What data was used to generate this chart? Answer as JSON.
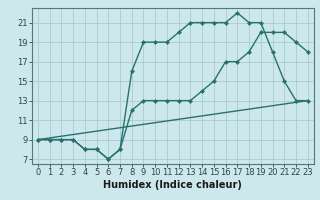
{
  "title": "",
  "xlabel": "Humidex (Indice chaleur)",
  "bg_color": "#cce8ec",
  "grid_color": "#aacccc",
  "line_color": "#2a7070",
  "line1_x": [
    0,
    1,
    2,
    3,
    4,
    5,
    6,
    7,
    8,
    9,
    10,
    11,
    12,
    13,
    14,
    15,
    16,
    17,
    18,
    19,
    20,
    21,
    22,
    23
  ],
  "line1_y": [
    9,
    9,
    9,
    9,
    8,
    8,
    7,
    8,
    16,
    19,
    19,
    19,
    20,
    21,
    21,
    21,
    21,
    22,
    21,
    21,
    18,
    15,
    13,
    13
  ],
  "line2_x": [
    0,
    1,
    2,
    3,
    4,
    5,
    6,
    7,
    8,
    9,
    10,
    11,
    12,
    13,
    14,
    15,
    16,
    17,
    18,
    19,
    20,
    21,
    22,
    23
  ],
  "line2_y": [
    9,
    9,
    9,
    9,
    8,
    8,
    7,
    8,
    12,
    13,
    13,
    13,
    13,
    13,
    14,
    15,
    17,
    17,
    18,
    20,
    20,
    20,
    19,
    18
  ],
  "line3_x": [
    0,
    23
  ],
  "line3_y": [
    9,
    13
  ],
  "xlim": [
    -0.5,
    23.5
  ],
  "ylim": [
    6.5,
    22.5
  ],
  "xticks": [
    0,
    1,
    2,
    3,
    4,
    5,
    6,
    7,
    8,
    9,
    10,
    11,
    12,
    13,
    14,
    15,
    16,
    17,
    18,
    19,
    20,
    21,
    22,
    23
  ],
  "yticks": [
    7,
    9,
    11,
    13,
    15,
    17,
    19,
    21
  ],
  "marker": "D",
  "markersize": 2.5,
  "linewidth": 1.0,
  "tick_fontsize": 6,
  "label_fontsize": 7
}
